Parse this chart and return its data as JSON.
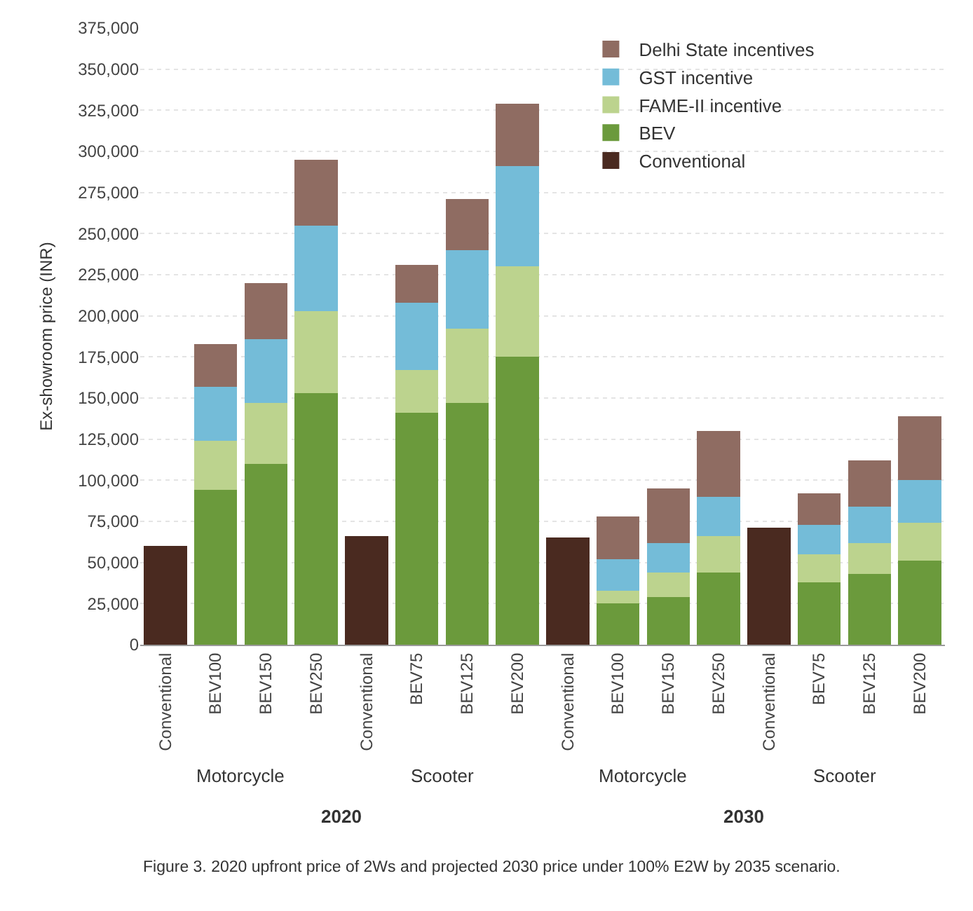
{
  "chart_data": {
    "type": "bar",
    "stacked": true,
    "ylabel": "Ex-showroom price (INR)",
    "categories": [
      "Conventional",
      "BEV100",
      "BEV150",
      "BEV250",
      "Conventional",
      "BEV75",
      "BEV125",
      "BEV200",
      "Conventional",
      "BEV100",
      "BEV150",
      "BEV250",
      "Conventional",
      "BEV75",
      "BEV125",
      "BEV200"
    ],
    "series": [
      {
        "name": "Conventional",
        "color": "#4a2a20",
        "values": [
          60000,
          null,
          null,
          null,
          66000,
          null,
          null,
          null,
          65000,
          null,
          null,
          null,
          71000,
          null,
          null,
          null
        ]
      },
      {
        "name": "BEV",
        "color": "#6b9a3c",
        "values": [
          null,
          94000,
          110000,
          153000,
          null,
          141000,
          147000,
          175000,
          null,
          25000,
          29000,
          44000,
          null,
          38000,
          43000,
          51000
        ]
      },
      {
        "name": "FAME-II incentive",
        "color": "#bcd38e",
        "values": [
          null,
          30000,
          37000,
          50000,
          null,
          26000,
          45000,
          55000,
          null,
          8000,
          15000,
          22000,
          null,
          17000,
          19000,
          23000
        ]
      },
      {
        "name": "GST incentive",
        "color": "#74bcd8",
        "values": [
          null,
          33000,
          39000,
          52000,
          null,
          41000,
          48000,
          61000,
          null,
          19000,
          18000,
          24000,
          null,
          18000,
          22000,
          26000
        ]
      },
      {
        "name": "Delhi State incentives",
        "color": "#8f6c62",
        "values": [
          null,
          26000,
          34000,
          40000,
          null,
          23000,
          31000,
          38000,
          null,
          26000,
          33000,
          40000,
          null,
          19000,
          28000,
          39000
        ]
      }
    ],
    "ylim": [
      0,
      375000
    ],
    "yticks": [
      {
        "value": 0,
        "label": "0"
      },
      {
        "value": 25000,
        "label": "25,000"
      },
      {
        "value": 50000,
        "label": "50,000"
      },
      {
        "value": 75000,
        "label": "75,000"
      },
      {
        "value": 100000,
        "label": "100,000"
      },
      {
        "value": 125000,
        "label": "125,000"
      },
      {
        "value": 150000,
        "label": "150,000"
      },
      {
        "value": 175000,
        "label": "175,000"
      },
      {
        "value": 200000,
        "label": "200,000"
      },
      {
        "value": 225000,
        "label": "225,000"
      },
      {
        "value": 250000,
        "label": "250,000"
      },
      {
        "value": 275000,
        "label": "275,000"
      },
      {
        "value": 300000,
        "label": "300,000"
      },
      {
        "value": 325000,
        "label": "325,000"
      },
      {
        "value": 350000,
        "label": "350,000"
      },
      {
        "value": 375000,
        "label": "375,000"
      }
    ],
    "grid": "y",
    "legend": "top right",
    "annotations": [
      "Motorcycle",
      "Scooter",
      "Motorcycle",
      "Scooter",
      "2020",
      "2030",
      "Figure 3. 2020 upfront price of 2Ws and projected 2030 price under 100% E2W by 2035 scenario."
    ]
  }
}
